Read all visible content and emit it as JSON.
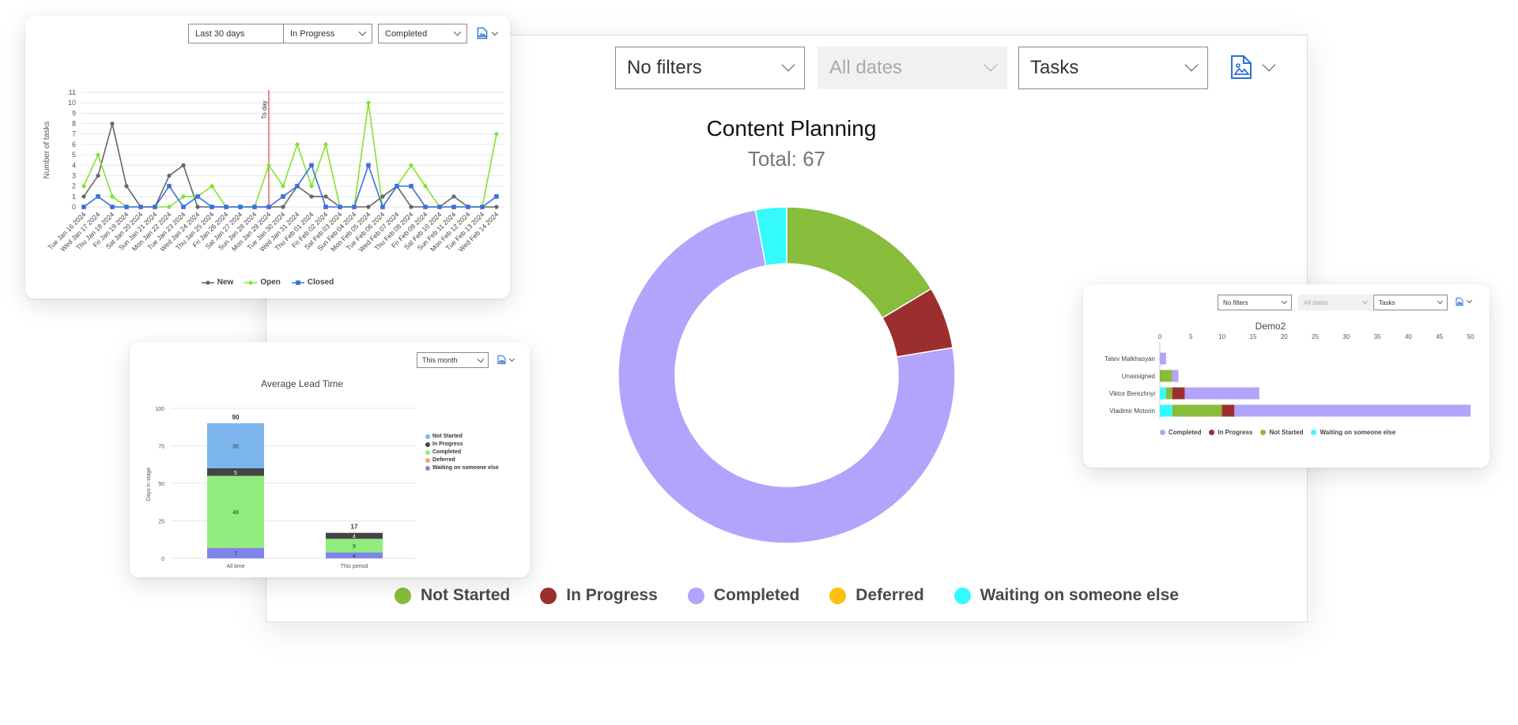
{
  "main_panel": {
    "filters": {
      "filter": "No filters",
      "dates": "All dates",
      "type": "Tasks"
    },
    "chart_data": {
      "type": "pie",
      "title": "Content Planning",
      "subtitle": "Total: 67",
      "donut": true,
      "categories": [
        "Not Started",
        "In Progress",
        "Completed",
        "Deferred",
        "Waiting on someone else"
      ],
      "values": [
        11,
        4,
        50,
        0,
        2
      ],
      "colors": [
        "#88bc3b",
        "#9b2f30",
        "#b3a3fc",
        "#fcc10c",
        "#35fafc"
      ]
    }
  },
  "tasks_line_card": {
    "filters": {
      "period": "Last 30 days",
      "status_a": "In Progress",
      "status_b": "Completed"
    },
    "chart_data": {
      "type": "line",
      "ylabel": "Number of tasks",
      "ylim": [
        0,
        11
      ],
      "yticks": [
        "0",
        "1",
        "2",
        "3",
        "4",
        "5",
        "6",
        "7",
        "8",
        "9",
        "10",
        "11"
      ],
      "today_label": "To day",
      "today_index": 13,
      "x": [
        "Tue Jan 16 2024",
        "Wed Jan 17 2024",
        "Thu Jan 18 2024",
        "Fri Jan 19 2024",
        "Sat Jan 20 2024",
        "Sun Jan 21 2024",
        "Mon Jan 22 2024",
        "Tue Jan 23 2024",
        "Wed Jan 24 2024",
        "Thu Jan 25 2024",
        "Fri Jan 26 2024",
        "Sat Jan 27 2024",
        "Sun Jan 28 2024",
        "Mon Jan 29 2024",
        "Tue Jan 30 2024",
        "Wed Jan 31 2024",
        "Thu Feb 01 2024",
        "Fri Feb 02 2024",
        "Sat Feb 03 2024",
        "Sun Feb 04 2024",
        "Mon Feb 05 2024",
        "Tue Feb 06 2024",
        "Wed Feb 07 2024",
        "Thu Feb 08 2024",
        "Fri Feb 09 2024",
        "Sat Feb 10 2024",
        "Sun Feb 11 2024",
        "Mon Feb 12 2024",
        "Tue Feb 13 2024",
        "Wed Feb 14 2024"
      ],
      "series": [
        {
          "name": "New",
          "color": "#666666",
          "marker": "circle",
          "values": [
            1,
            3,
            8,
            2,
            0,
            0,
            3,
            4,
            0,
            0,
            0,
            0,
            0,
            0,
            0,
            2,
            1,
            1,
            0,
            0,
            0,
            1,
            2,
            0,
            0,
            0,
            1,
            0,
            0,
            0
          ]
        },
        {
          "name": "Open",
          "color": "#7fe52f",
          "marker": "diamond",
          "values": [
            2,
            5,
            1,
            0,
            0,
            0,
            0,
            1,
            1,
            2,
            0,
            0,
            0,
            4,
            2,
            6,
            2,
            6,
            0,
            0,
            10,
            0,
            2,
            4,
            2,
            0,
            0,
            0,
            0,
            7
          ]
        },
        {
          "name": "Closed",
          "color": "#3a6fe0",
          "marker": "square",
          "values": [
            0,
            1,
            0,
            0,
            0,
            0,
            2,
            0,
            1,
            0,
            0,
            0,
            0,
            0,
            1,
            2,
            4,
            0,
            0,
            0,
            4,
            0,
            2,
            2,
            0,
            0,
            0,
            0,
            0,
            1
          ]
        }
      ]
    }
  },
  "lead_time_card": {
    "filters": {
      "period": "This month"
    },
    "chart_data": {
      "type": "bar",
      "stacked": true,
      "title": "Average Lead Time",
      "ylabel": "Days in stage",
      "ylim": [
        0,
        100
      ],
      "yticks": [
        "0",
        "25",
        "50",
        "75",
        "100"
      ],
      "categories": [
        "All time",
        "This period"
      ],
      "totals": [
        "90",
        "17"
      ],
      "series": [
        {
          "name": "Not Started",
          "color": "#7cb5ec",
          "values": [
            30,
            0
          ]
        },
        {
          "name": "In Progress",
          "color": "#434348",
          "values": [
            5,
            4
          ]
        },
        {
          "name": "Completed",
          "color": "#90ed7d",
          "values": [
            48,
            9
          ]
        },
        {
          "name": "Deferred",
          "color": "#f7a35c",
          "values": [
            0,
            0
          ]
        },
        {
          "name": "Waiting on someone else",
          "color": "#8085e9",
          "values": [
            7,
            4
          ]
        }
      ]
    }
  },
  "demo_card": {
    "filters": {
      "filter": "No filters",
      "dates": "All dates",
      "type": "Tasks"
    },
    "chart_data": {
      "type": "bar",
      "orientation": "horizontal",
      "stacked": true,
      "title": "Demo2",
      "xlim": [
        0,
        50
      ],
      "xticks": [
        "0",
        "5",
        "10",
        "15",
        "20",
        "25",
        "30",
        "35",
        "40",
        "45",
        "50"
      ],
      "categories": [
        "Tatev Malkhasyan",
        "Unassigned",
        "Viktor Berezhnyi",
        "Vladimir Motorin"
      ],
      "series": [
        {
          "name": "Waiting on someone else",
          "color": "#35fafc",
          "values": [
            0,
            0,
            1,
            2
          ],
          "legend": false
        },
        {
          "name": "Not Started",
          "color": "#88bc3b",
          "values": [
            0,
            2,
            1,
            8
          ],
          "legend": false
        },
        {
          "name": "In Progress",
          "color": "#9b2f30",
          "values": [
            0,
            0,
            2,
            2
          ],
          "legend": false
        },
        {
          "name": "Completed",
          "color": "#b3a3fc",
          "values": [
            1,
            1,
            12,
            38
          ],
          "legend": false
        }
      ],
      "legend": [
        {
          "name": "Completed",
          "color": "#b3a3fc"
        },
        {
          "name": "In Progress",
          "color": "#9b2f30"
        },
        {
          "name": "Not Started",
          "color": "#88bc3b"
        },
        {
          "name": "Waiting on someone else",
          "color": "#35fafc"
        }
      ]
    }
  }
}
